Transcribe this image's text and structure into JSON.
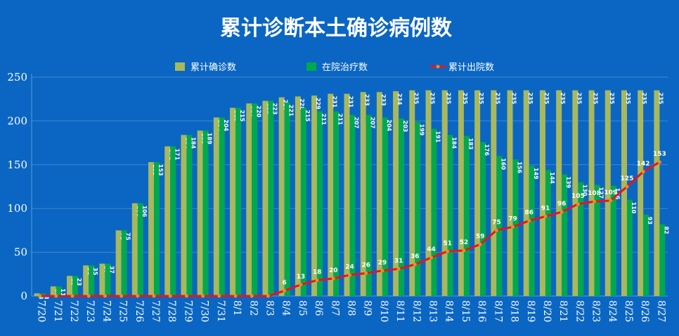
{
  "chart_data": {
    "type": "bar",
    "title": "累计诊断本土确诊病例数",
    "xlabel": "",
    "ylabel": "",
    "ylim": [
      0,
      250
    ],
    "yticks": [
      0,
      50,
      100,
      150,
      200,
      250
    ],
    "grid": true,
    "legend_position": "top",
    "categories": [
      "7/20",
      "7/21",
      "7/22",
      "7/23",
      "7/24",
      "7/25",
      "7/26",
      "7/27",
      "7/28",
      "7/29",
      "7/30",
      "7/31",
      "8/1",
      "8/2",
      "8/3",
      "8/4",
      "8/5",
      "8/6",
      "8/7",
      "8/8",
      "8/9",
      "8/10",
      "8/11",
      "8/12",
      "8/13",
      "8/14",
      "8/15",
      "8/16",
      "8/17",
      "8/18",
      "8/19",
      "8/20",
      "8/21",
      "8/22",
      "8/23",
      "8/24",
      "8/25",
      "8/26",
      "8/27"
    ],
    "series": [
      {
        "name": "累计确诊数",
        "type": "bar",
        "color": "#a8b85c",
        "values": [
          3,
          11,
          23,
          35,
          37,
          75,
          106,
          153,
          171,
          184,
          189,
          204,
          215,
          220,
          223,
          227,
          228,
          229,
          231,
          231,
          233,
          233,
          234,
          235,
          235,
          235,
          235,
          235,
          235,
          235,
          235,
          235,
          235,
          235,
          235,
          235,
          235,
          235,
          235
        ]
      },
      {
        "name": "在院治疗数",
        "type": "bar",
        "color": "#00a84f",
        "values": [
          3,
          11,
          23,
          35,
          37,
          75,
          106,
          153,
          171,
          184,
          189,
          204,
          215,
          220,
          223,
          221,
          215,
          211,
          211,
          207,
          207,
          204,
          203,
          199,
          191,
          184,
          183,
          176,
          160,
          156,
          149,
          144,
          139,
          130,
          127,
          126,
          110,
          93,
          82
        ]
      },
      {
        "name": "累计出院数",
        "type": "line",
        "color": "#e8141c",
        "values": [
          0,
          0,
          0,
          0,
          0,
          0,
          0,
          0,
          0,
          0,
          0,
          0,
          0,
          0,
          0,
          6,
          13,
          18,
          20,
          24,
          26,
          29,
          31,
          36,
          44,
          51,
          52,
          59,
          75,
          79,
          86,
          91,
          96,
          105,
          108,
          109,
          125,
          142,
          153
        ]
      }
    ]
  }
}
